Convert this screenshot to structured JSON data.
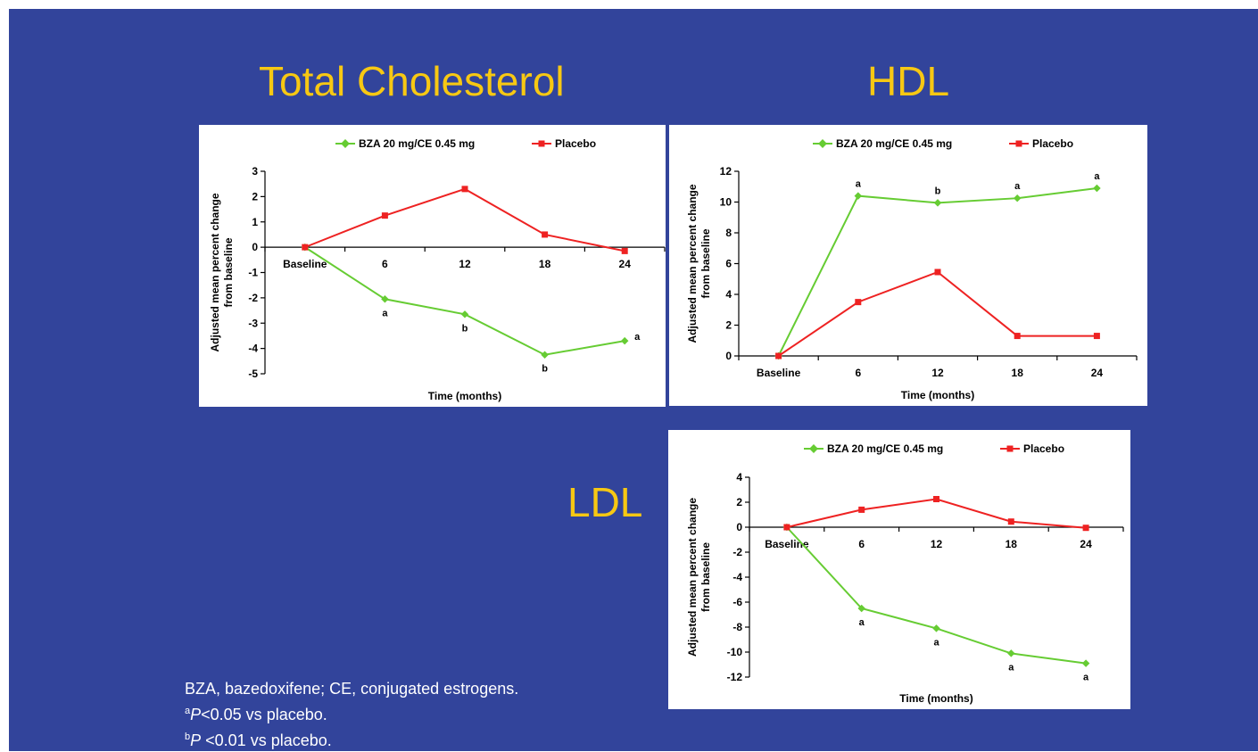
{
  "headings": {
    "total_cholesterol": "Total Cholesterol",
    "hdl": "HDL",
    "ldl": "LDL"
  },
  "footnotes": {
    "line1": "BZA, bazedoxifene; CE, conjugated estrogens.",
    "line2_sup": "a",
    "line2_p": "P",
    "line2_rest": "<0.05 vs placebo.",
    "line3_sup": "b",
    "line3_p": "P",
    "line3_rest": " <0.01 vs placebo."
  },
  "colors": {
    "background": "#32449b",
    "heading": "#f7c813",
    "bza": "#66cc33",
    "placebo": "#ee2222"
  },
  "chart_data": [
    {
      "id": "total_cholesterol",
      "type": "line",
      "title": "Total Cholesterol",
      "xlabel": "Time (months)",
      "ylabel": "Adjusted mean percent change from baseline",
      "ylabel_lines": [
        "Adjusted mean percent change",
        "from baseline"
      ],
      "categories": [
        "Baseline",
        "6",
        "12",
        "18",
        "24"
      ],
      "ylim": [
        -5,
        3
      ],
      "yticks": [
        3,
        2,
        1,
        0,
        -1,
        -2,
        -3,
        -4,
        -5
      ],
      "ytick_labels": [
        "3",
        "2",
        "1",
        "0",
        "-1",
        "-2",
        "-3",
        "-4",
        "-5"
      ],
      "legend": "top",
      "series": [
        {
          "name": "BZA 20 mg/CE 0.45 mg",
          "values": [
            0,
            -2.05,
            -2.65,
            -4.25,
            -3.7
          ],
          "annotations": [
            "",
            "a",
            "b",
            "b",
            "a"
          ],
          "annotation_pos": [
            "",
            "below",
            "below",
            "below",
            "right"
          ]
        },
        {
          "name": "Placebo",
          "values": [
            0,
            1.25,
            2.3,
            0.5,
            -0.15
          ]
        }
      ]
    },
    {
      "id": "hdl",
      "type": "line",
      "title": "HDL",
      "xlabel": "Time (months)",
      "ylabel": "Adjusted mean percent change from baseline",
      "ylabel_lines": [
        "Adjusted mean percent change",
        "from baseline"
      ],
      "categories": [
        "Baseline",
        "6",
        "12",
        "18",
        "24"
      ],
      "ylim": [
        0,
        12
      ],
      "yticks": [
        12,
        10,
        8,
        6,
        4,
        2,
        0
      ],
      "ytick_labels": [
        "12",
        "10",
        "8",
        "6",
        "4",
        "2",
        "0"
      ],
      "legend": "top",
      "series": [
        {
          "name": "BZA 20 mg/CE 0.45 mg",
          "values": [
            0,
            10.4,
            9.95,
            10.25,
            10.9
          ],
          "annotations": [
            "",
            "a",
            "b",
            "a",
            "a"
          ],
          "annotation_pos": [
            "",
            "above",
            "above",
            "above",
            "above"
          ]
        },
        {
          "name": "Placebo",
          "values": [
            0,
            3.5,
            5.45,
            1.3,
            1.3
          ]
        }
      ]
    },
    {
      "id": "ldl",
      "type": "line",
      "title": "LDL",
      "xlabel": "Time (months)",
      "ylabel": "Adjusted mean percent change from baseline",
      "ylabel_lines": [
        "Adjusted mean percent change",
        "from baseline"
      ],
      "categories": [
        "Baseline",
        "6",
        "12",
        "18",
        "24"
      ],
      "ylim": [
        -12,
        4
      ],
      "yticks": [
        4,
        2,
        0,
        -2,
        -4,
        -6,
        -8,
        -10,
        -12
      ],
      "ytick_labels": [
        "4",
        "2",
        "0",
        "-2",
        "-4",
        "-6",
        "-8",
        "-10",
        "-12"
      ],
      "legend": "top",
      "series": [
        {
          "name": "BZA 20 mg/CE 0.45 mg",
          "values": [
            0,
            -6.5,
            -8.1,
            -10.1,
            -10.9
          ],
          "annotations": [
            "",
            "a",
            "a",
            "a",
            "a"
          ],
          "annotation_pos": [
            "",
            "below",
            "below",
            "below",
            "below"
          ]
        },
        {
          "name": "Placebo",
          "values": [
            0,
            1.4,
            2.25,
            0.45,
            -0.05
          ]
        }
      ]
    }
  ]
}
